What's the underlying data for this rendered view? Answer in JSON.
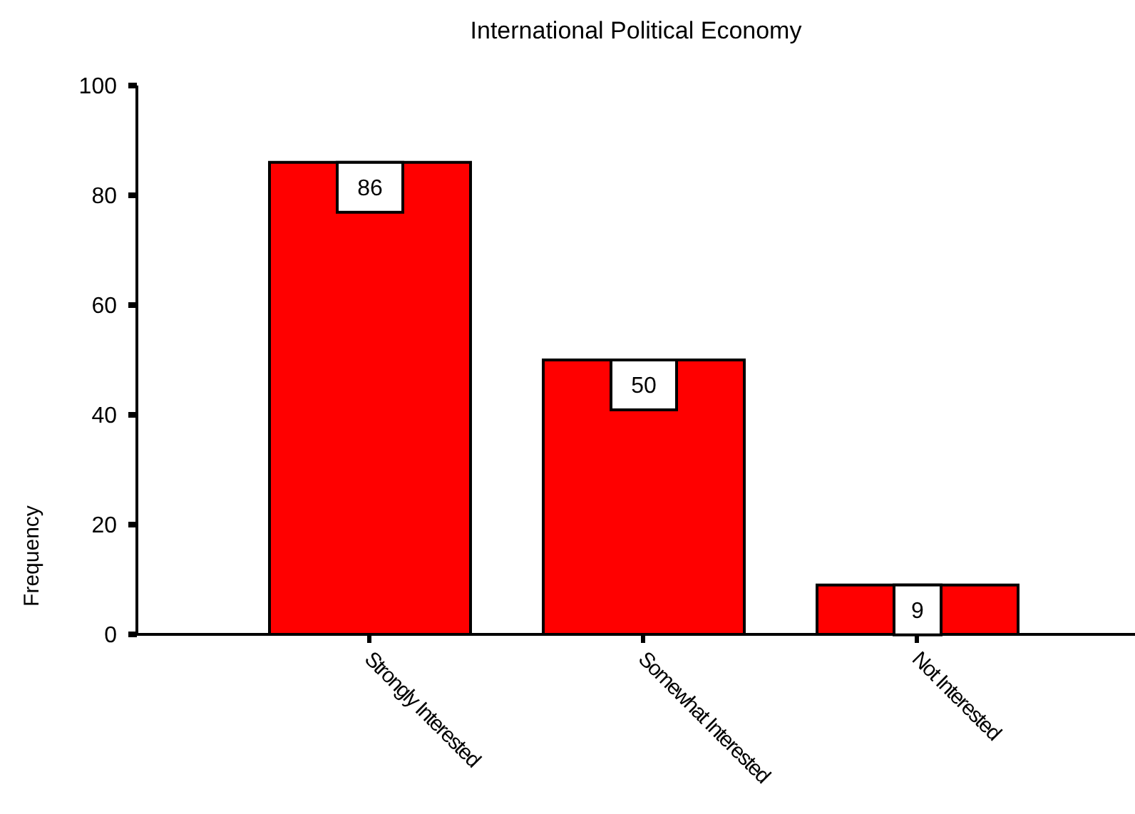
{
  "chart_data": {
    "type": "bar",
    "title": "International Political Economy",
    "ylabel": "Frequency",
    "categories": [
      "Strongly Interested",
      "Somewhat Interested",
      "Not Interested"
    ],
    "values": [
      86,
      50,
      9
    ],
    "color": "#ff0000",
    "ylim": [
      0,
      100
    ],
    "yticks": [
      0,
      20,
      40,
      60,
      80,
      100
    ],
    "data_labels": true
  }
}
